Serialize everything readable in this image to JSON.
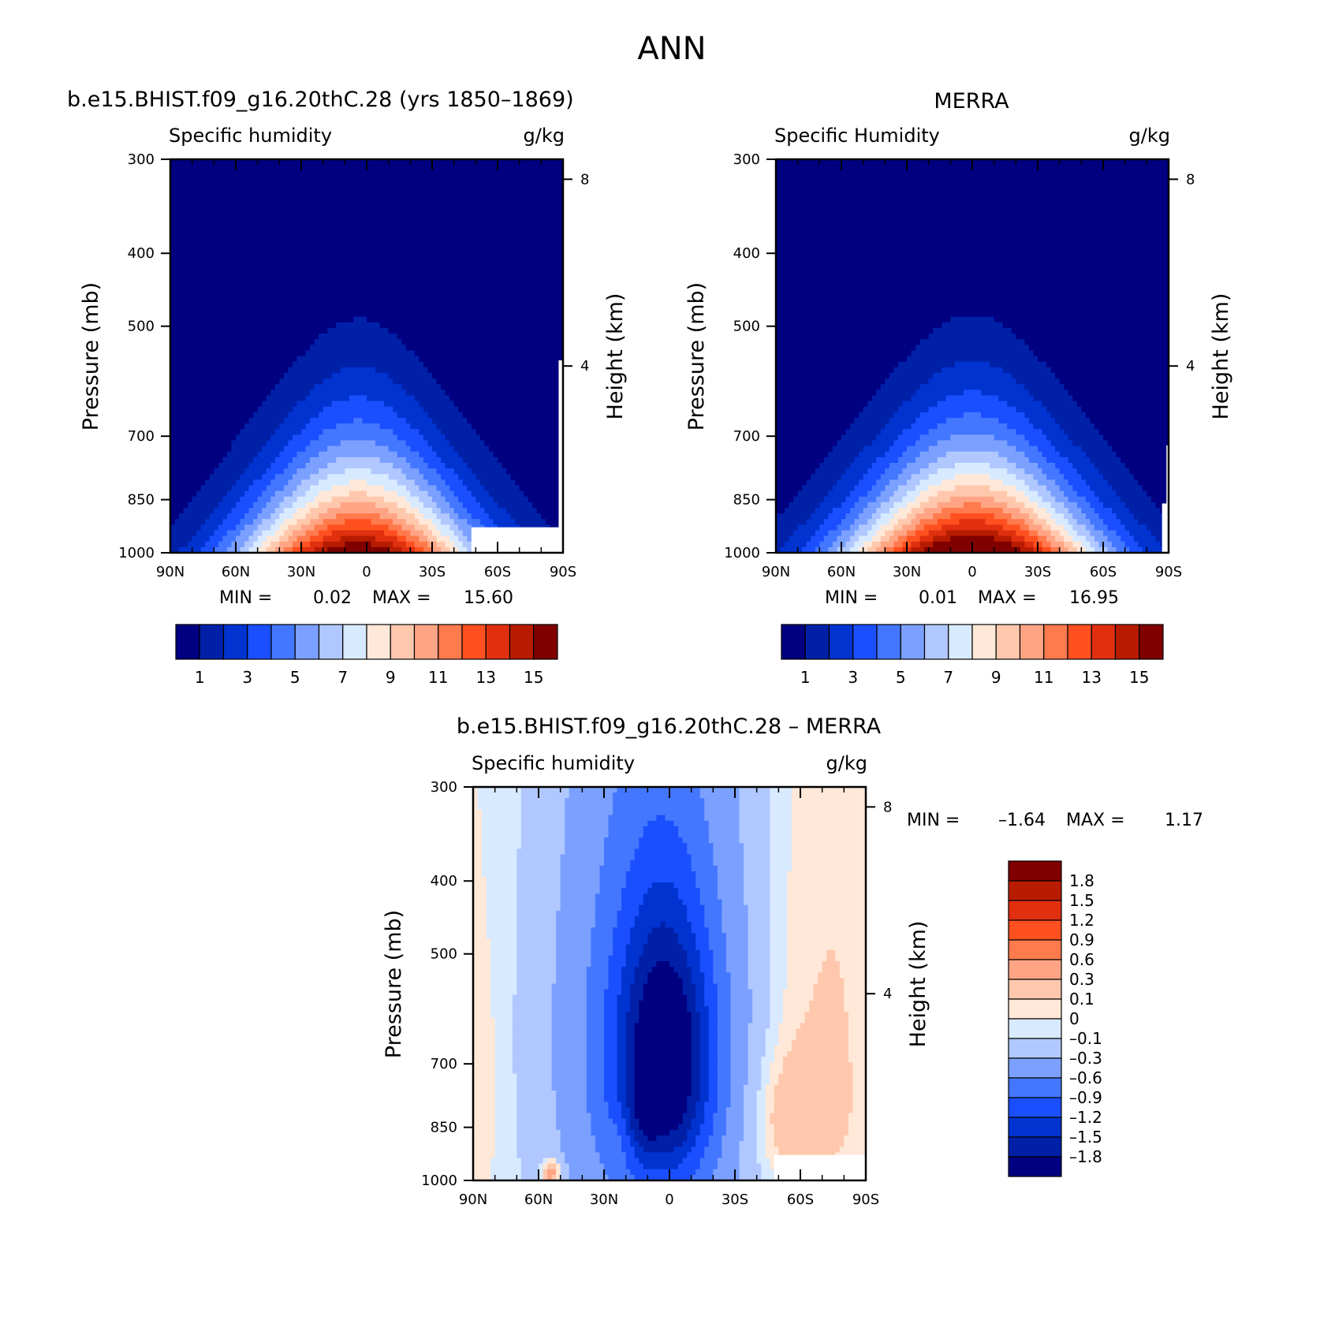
{
  "figure_title": "ANN",
  "colors": {
    "seq": [
      "#000080",
      "#0020a8",
      "#0033d0",
      "#1a4fff",
      "#4477ff",
      "#7ba0ff",
      "#b0c8ff",
      "#d8eaff",
      "#ffe8d8",
      "#ffc8ad",
      "#ffa585",
      "#ff7a4d",
      "#ff5020",
      "#e03010",
      "#b81c00",
      "#800000"
    ],
    "diff": [
      "#000080",
      "#0020a8",
      "#0033d0",
      "#1a4fff",
      "#4477ff",
      "#7ba0ff",
      "#b0c8ff",
      "#d8eaff",
      "#ffe8d8",
      "#ffc8ad",
      "#ffa585",
      "#ff7a4d",
      "#ff5020",
      "#e03010",
      "#b81c00",
      "#800000"
    ]
  },
  "chart_data": [
    {
      "type": "heatmap",
      "title": "b.e15.BHIST.f09_g16.20thC.28 (yrs 1850–1869)",
      "variable": "Specific humidity",
      "units": "g/kg",
      "xlabel": "",
      "ylabel": "Pressure (mb)",
      "ylabel_right": "Height (km)",
      "x_ticks": [
        "90N",
        "60N",
        "30N",
        "0",
        "30S",
        "60S",
        "90S"
      ],
      "y_ticks": [
        300,
        400,
        500,
        700,
        850,
        1000
      ],
      "y_log": true,
      "y_right_ticks": [
        4,
        8
      ],
      "min_label": "MIN =",
      "min_value": "0.02",
      "max_label": "MAX =",
      "max_value": "15.60",
      "min": 0.02,
      "max": 15.6,
      "levels": [
        1,
        2,
        3,
        4,
        5,
        6,
        7,
        8,
        9,
        10,
        11,
        12,
        13,
        14,
        15
      ],
      "colorbar_labels": [
        "1",
        "3",
        "5",
        "7",
        "9",
        "11",
        "13",
        "15"
      ],
      "surface_cut": {
        "lat_from": -48,
        "lat_to": -90,
        "p": 925
      },
      "surface_cut2": {
        "lat_from": -88,
        "lat_to": -90,
        "p": 555
      },
      "peak": 15.6,
      "peak_lat": 4,
      "depth_scale": 1.0
    },
    {
      "type": "heatmap",
      "title": "MERRA",
      "variable": "Specific Humidity",
      "units": "g/kg",
      "xlabel": "",
      "ylabel": "Pressure (mb)",
      "ylabel_right": "Height (km)",
      "x_ticks": [
        "90N",
        "60N",
        "30N",
        "0",
        "30S",
        "60S",
        "90S"
      ],
      "y_ticks": [
        300,
        400,
        500,
        700,
        850,
        1000
      ],
      "y_log": true,
      "y_right_ticks": [
        4,
        8
      ],
      "min_label": "MIN =",
      "min_value": "0.01",
      "max_label": "MAX =",
      "max_value": "16.95",
      "min": 0.01,
      "max": 16.95,
      "levels": [
        1,
        2,
        3,
        4,
        5,
        6,
        7,
        8,
        9,
        10,
        11,
        12,
        13,
        14,
        15
      ],
      "colorbar_labels": [
        "1",
        "3",
        "5",
        "7",
        "9",
        "11",
        "13",
        "15"
      ],
      "surface_cut": {
        "lat_from": -87,
        "lat_to": -90,
        "p": 860
      },
      "surface_cut2": {
        "lat_from": -89,
        "lat_to": -90,
        "p": 720
      },
      "peak": 16.95,
      "peak_lat": 0,
      "depth_scale": 1.07
    },
    {
      "type": "heatmap",
      "title": "b.e15.BHIST.f09_g16.20thC.28 – MERRA",
      "variable": "Specific humidity",
      "units": "g/kg",
      "xlabel": "",
      "ylabel": "Pressure (mb)",
      "ylabel_right": "Height (km)",
      "x_ticks": [
        "90N",
        "60N",
        "30N",
        "0",
        "30S",
        "60S",
        "90S"
      ],
      "y_ticks": [
        300,
        400,
        500,
        700,
        850,
        1000
      ],
      "y_log": true,
      "y_right_ticks": [
        4,
        8
      ],
      "min_label": "MIN =",
      "min_value": "–1.64",
      "max_label": "MAX =",
      "max_value": "1.17",
      "min": -1.64,
      "max": 1.17,
      "levels": [
        -1.8,
        -1.5,
        -1.2,
        -0.9,
        -0.6,
        -0.3,
        -0.1,
        0,
        0.1,
        0.3,
        0.6,
        0.9,
        1.2,
        1.5,
        1.8
      ],
      "colorbar_labels": [
        "1.8",
        "1.5",
        "1.2",
        "0.9",
        "0.6",
        "0.3",
        "0.1",
        "0",
        "–0.1",
        "–0.3",
        "–0.6",
        "–0.9",
        "–1.2",
        "–1.5",
        "–1.8"
      ],
      "surface_cut": {
        "lat_from": -48,
        "lat_to": -90,
        "p": 925
      }
    }
  ]
}
